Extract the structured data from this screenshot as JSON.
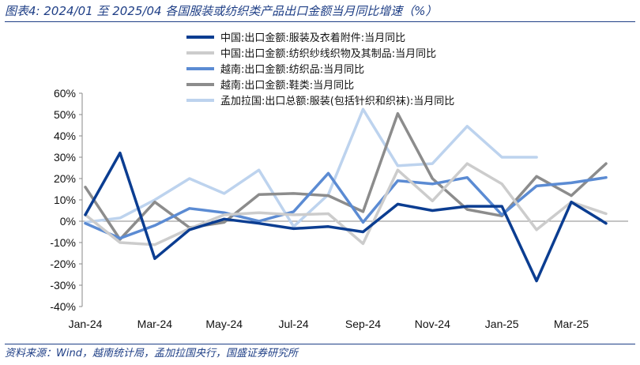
{
  "header": {
    "title": "图表4:  2024/01 至 2025/04 各国服装或纺织类产品出口金额当月同比增速（%）"
  },
  "footer": {
    "source": "资料来源：Wind，越南统计局，孟加拉国央行，国盛证券研究所"
  },
  "chart_data": {
    "type": "line",
    "x": [
      "2024-01",
      "2024-02",
      "2024-03",
      "2024-04",
      "2024-05",
      "2024-06",
      "2024-07",
      "2024-08",
      "2024-09",
      "2024-10",
      "2024-11",
      "2024-12",
      "2025-01",
      "2025-02",
      "2025-03",
      "2025-04"
    ],
    "x_tick_labels": [
      "Jan-24",
      "Mar-24",
      "May-24",
      "Jul-24",
      "Sep-24",
      "Nov-24",
      "Jan-25",
      "Mar-25"
    ],
    "y_tick_labels": [
      "60%",
      "50%",
      "40%",
      "30%",
      "20%",
      "10%",
      "0%",
      "-10%",
      "-20%",
      "-30%",
      "-40%"
    ],
    "ylim": [
      -40,
      60
    ],
    "y_unit": "%",
    "grid": false,
    "legend_position": "top",
    "series": [
      {
        "name": "中国:出口金额:服装及衣着附件:当月同比",
        "color": "#0b3d91",
        "values": [
          3,
          32,
          -17.5,
          -4,
          1,
          -1,
          -3.5,
          -2.5,
          -5,
          8,
          5,
          7,
          7,
          -28,
          9,
          -1
        ]
      },
      {
        "name": "中国:出口金额:纺织纱线织物及其制品:当月同比",
        "color": "#cccccc",
        "values": [
          3,
          -10,
          -11,
          -3.5,
          3,
          4,
          3,
          3.5,
          -10.5,
          24,
          9.5,
          27,
          17.5,
          -4,
          9,
          3.5
        ]
      },
      {
        "name": "越南:出口金额:纺织品:当月同比",
        "color": "#5b8bd3",
        "values": [
          -1,
          -8,
          -2,
          6,
          4,
          0,
          4.5,
          22.5,
          -0.5,
          19,
          17.5,
          20.5,
          3,
          16.5,
          18,
          20.5
        ]
      },
      {
        "name": "越南:出口金额:鞋类:当月同比",
        "color": "#8c8c8c",
        "values": [
          16,
          -8.5,
          9,
          -3,
          -0.5,
          12.5,
          13,
          12,
          4.5,
          50.5,
          20,
          5.5,
          2.5,
          21,
          12,
          27
        ]
      },
      {
        "name": "孟加拉国:出口总额:服装(包括针织和织袜):当月同比",
        "color": "#bdd3ee",
        "values": [
          -0.5,
          1.5,
          10,
          20,
          13,
          24,
          -2.5,
          12.5,
          52.5,
          26,
          27,
          44.5,
          30,
          30,
          null,
          null
        ]
      }
    ]
  }
}
